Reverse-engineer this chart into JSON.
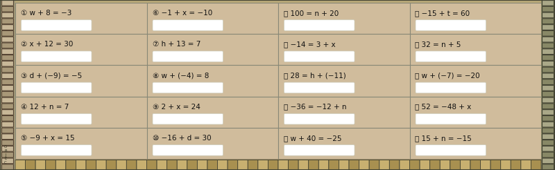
{
  "background_color": "#b8a888",
  "cell_bg_light": "#d0bc9c",
  "cell_bg_dark": "#c4b090",
  "grid_line_color": "#888877",
  "text_color": "#111111",
  "cols": 4,
  "rows": 5,
  "equations": [
    [
      "① w + 8 = −3",
      "⑥ −1 + x = −10",
      "⑪ 100 = n + 20",
      "⑯ −15 + t = 60"
    ],
    [
      "② x + 12 = 30",
      "⑦ h + 13 = 7",
      "⑫ −14 = 3 + x",
      "⑰ 32 = n + 5"
    ],
    [
      "③ d + (−9) = −5",
      "⑧ w + (−4) = 8",
      "⑬ 28 = h + (−11)",
      "⑱ w + (−7) = −20"
    ],
    [
      "④ 12 + n = 7",
      "⑨ 2 + x = 24",
      "⑭ −36 = −12 + n",
      "⑲ 52 = −48 + x"
    ],
    [
      "⑤ −9 + x = 15",
      "⑩ −16 + d = 30",
      "⑮ w + 40 = −25",
      "⑳ 15 + n = −15"
    ]
  ],
  "fig_width": 8.0,
  "fig_height": 2.46,
  "dpi": 100,
  "left_deco_color": "#888877",
  "right_deco_color": "#666655",
  "bottom_deco_color": "#888877",
  "answer_box_color": "#ffffff",
  "answer_box_edge": "#ccccbb"
}
